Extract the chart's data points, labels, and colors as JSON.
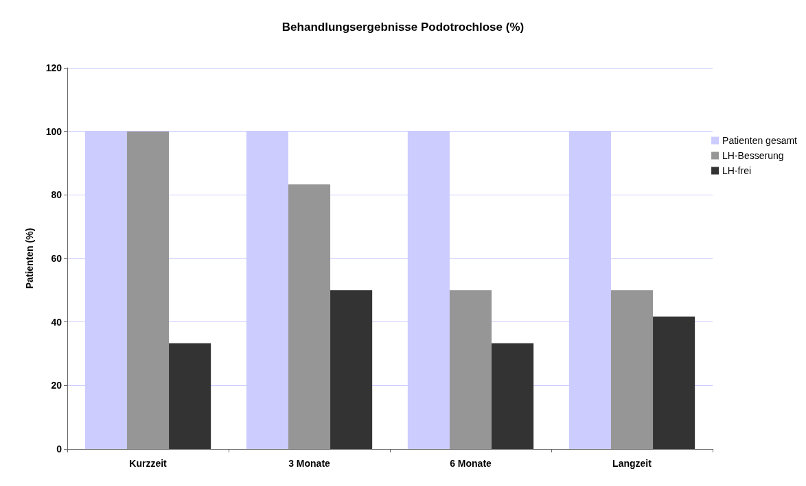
{
  "chart_data": {
    "type": "bar",
    "title": "Behandlungsergebnisse Podotrochlose (%)",
    "ylabel": "Patienten (%)",
    "categories": [
      "Kurzzeit",
      "3 Monate",
      "6 Monate",
      "Langzeit"
    ],
    "series": [
      {
        "name": "Patienten gesamt",
        "color": "#ccccff",
        "values": [
          100,
          100,
          100,
          100
        ]
      },
      {
        "name": "LH-Besserung",
        "color": "#969696",
        "values": [
          100,
          83.3,
          50,
          50
        ]
      },
      {
        "name": "LH-frei",
        "color": "#333333",
        "values": [
          33.3,
          50,
          33.3,
          41.7
        ]
      }
    ],
    "ylim": [
      0,
      120
    ],
    "yticks": [
      0,
      20,
      40,
      60,
      80,
      100,
      120
    ],
    "grid": "y",
    "legend": "right"
  }
}
